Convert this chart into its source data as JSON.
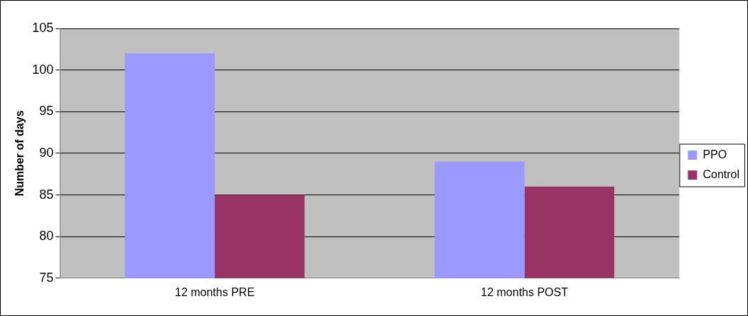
{
  "chart_data": {
    "type": "bar",
    "ylabel": "Number of days",
    "categories": [
      "12 months PRE",
      "12 months POST"
    ],
    "series": [
      {
        "name": "PPO",
        "color": "#9999ff",
        "values": [
          102,
          89
        ]
      },
      {
        "name": "Control",
        "color": "#993366",
        "values": [
          85,
          86
        ]
      }
    ],
    "ylim": [
      75,
      105
    ],
    "yticks": [
      75,
      80,
      85,
      90,
      95,
      100,
      105
    ],
    "grid": "y",
    "legend": "right"
  }
}
